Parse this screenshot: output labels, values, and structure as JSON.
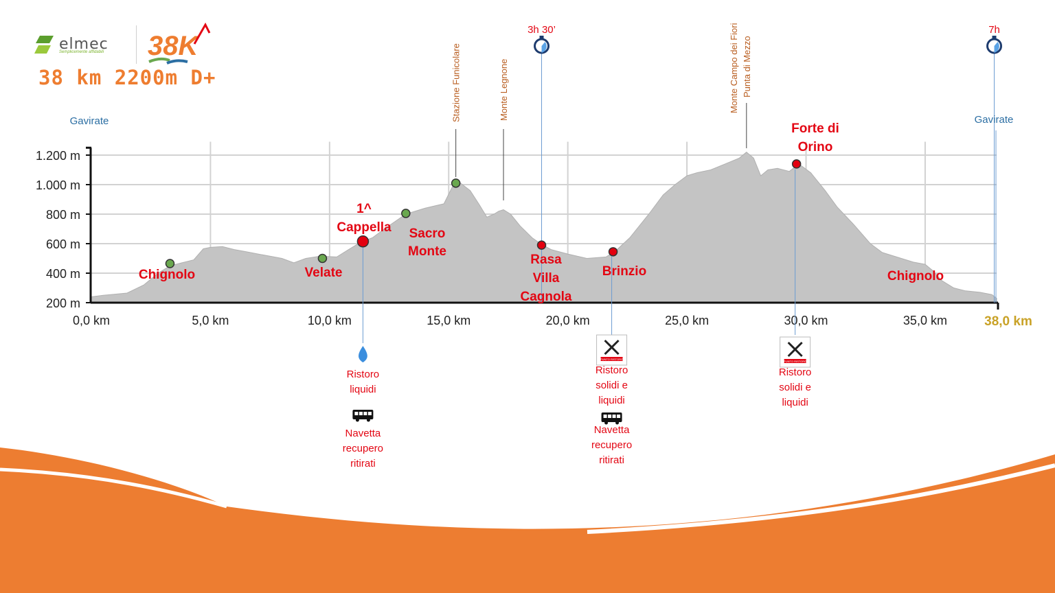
{
  "branding": {
    "sponsor_logo": "elmec",
    "sponsor_tagline": "Semplicemente affidabili",
    "event_logo": "38K",
    "headline": "38 km 2200m D+"
  },
  "colors": {
    "orange": "#ee7d30",
    "profile_fill": "#c4c4c4",
    "red": "#e30613",
    "blue": "#2b6ea3",
    "gold": "#c9a227",
    "green_marker": "#6aa84f",
    "red_marker": "#e3000f"
  },
  "chart_data": {
    "type": "area",
    "x_unit": "km",
    "y_unit": "m",
    "xlim": [
      0,
      38
    ],
    "ylim": [
      200,
      1300
    ],
    "x_ticks": [
      "0,0 km",
      "5,0 km",
      "10,0 km",
      "15,0 km",
      "20,0 km",
      "25,0 km",
      "30,0 km",
      "35,0 km"
    ],
    "x_tick_values": [
      0,
      5,
      10,
      15,
      20,
      25,
      30,
      35
    ],
    "x_end_label": "38,0 km",
    "y_ticks": [
      "200 m",
      "400 m",
      "600 m",
      "800 m",
      "1.000 m",
      "1.200 m"
    ],
    "y_tick_values": [
      200,
      400,
      600,
      800,
      1000,
      1200
    ],
    "grid": true,
    "profile": [
      [
        0,
        240
      ],
      [
        0.5,
        250
      ],
      [
        1.5,
        265
      ],
      [
        2.2,
        320
      ],
      [
        2.8,
        400
      ],
      [
        3.3,
        450
      ],
      [
        3.8,
        470
      ],
      [
        4.3,
        490
      ],
      [
        4.7,
        565
      ],
      [
        5.0,
        575
      ],
      [
        5.5,
        580
      ],
      [
        6.0,
        560
      ],
      [
        6.5,
        545
      ],
      [
        7.0,
        530
      ],
      [
        7.5,
        515
      ],
      [
        8.0,
        500
      ],
      [
        8.5,
        470
      ],
      [
        9.0,
        500
      ],
      [
        9.6,
        515
      ],
      [
        10.3,
        510
      ],
      [
        10.8,
        560
      ],
      [
        11.3,
        610
      ],
      [
        11.8,
        640
      ],
      [
        12.3,
        700
      ],
      [
        13.2,
        800
      ],
      [
        14.0,
        840
      ],
      [
        14.8,
        870
      ],
      [
        15.2,
        1000
      ],
      [
        15.5,
        1010
      ],
      [
        15.9,
        960
      ],
      [
        16.3,
        860
      ],
      [
        16.6,
        780
      ],
      [
        16.9,
        800
      ],
      [
        17.1,
        820
      ],
      [
        17.3,
        830
      ],
      [
        17.6,
        800
      ],
      [
        18.0,
        720
      ],
      [
        18.5,
        640
      ],
      [
        18.9,
        595
      ],
      [
        19.3,
        560
      ],
      [
        20.0,
        530
      ],
      [
        20.8,
        500
      ],
      [
        21.6,
        510
      ],
      [
        22.0,
        550
      ],
      [
        22.6,
        640
      ],
      [
        23.4,
        800
      ],
      [
        24.0,
        930
      ],
      [
        24.5,
        1000
      ],
      [
        25.0,
        1060
      ],
      [
        25.4,
        1080
      ],
      [
        26.0,
        1100
      ],
      [
        26.6,
        1140
      ],
      [
        27.2,
        1180
      ],
      [
        27.5,
        1220
      ],
      [
        27.8,
        1180
      ],
      [
        28.1,
        1060
      ],
      [
        28.4,
        1100
      ],
      [
        28.8,
        1110
      ],
      [
        29.3,
        1090
      ],
      [
        29.7,
        1140
      ],
      [
        30.2,
        1080
      ],
      [
        30.8,
        960
      ],
      [
        31.3,
        850
      ],
      [
        32.0,
        730
      ],
      [
        32.7,
        600
      ],
      [
        33.2,
        540
      ],
      [
        34.0,
        500
      ],
      [
        34.5,
        475
      ],
      [
        35.0,
        460
      ],
      [
        35.3,
        420
      ],
      [
        35.7,
        350
      ],
      [
        36.2,
        300
      ],
      [
        36.7,
        280
      ],
      [
        37.3,
        270
      ],
      [
        37.8,
        255
      ],
      [
        38.0,
        230
      ]
    ],
    "waypoints": [
      {
        "km": 3.3,
        "ele": 465,
        "marker": "green",
        "name": "Chignolo"
      },
      {
        "km": 9.7,
        "ele": 500,
        "marker": "green",
        "name": "Velate"
      },
      {
        "km": 11.4,
        "ele": 615,
        "marker": "red-large",
        "name_lines": [
          "1^",
          "Cappella"
        ]
      },
      {
        "km": 13.2,
        "ele": 805,
        "marker": "green",
        "name_lines": [
          "Sacro",
          "Monte"
        ]
      },
      {
        "km": 15.3,
        "ele": 1010,
        "marker": "green"
      },
      {
        "km": 18.9,
        "ele": 590,
        "marker": "red",
        "name_lines": [
          "Rasa",
          "Villa",
          "Cagnola"
        ]
      },
      {
        "km": 21.9,
        "ele": 545,
        "marker": "red",
        "name": "Brinzio"
      },
      {
        "km": 29.6,
        "ele": 1140,
        "marker": "red",
        "name_lines": [
          "Forte di",
          "Orino"
        ]
      },
      {
        "km": 34.2,
        "name": "Chignolo"
      }
    ],
    "summits": [
      {
        "km": 15.3,
        "label": "Stazione Funicolare"
      },
      {
        "km": 17.3,
        "label": "Monte Legnone"
      },
      {
        "km": 27.5,
        "label_lines": [
          "Monte Campo dei Fiori",
          "Punta di Mezzo"
        ]
      }
    ],
    "start_label": "Gavirate",
    "finish_label": "Gavirate",
    "time_checks": [
      {
        "km": 18.9,
        "label": "3h 30’",
        "icon": "stopwatch-icon"
      },
      {
        "km": 37.9,
        "label": "7h",
        "icon": "stopwatch-icon"
      }
    ],
    "aid_stations": [
      {
        "km": 11.4,
        "icon": "water-drop-icon",
        "lines": [
          "Ristoro",
          "liquidi"
        ],
        "shuttle": true
      },
      {
        "km": 21.9,
        "icon": "food-station-icon",
        "lines": [
          "Ristoro",
          "solidi e",
          "liquidi"
        ],
        "shuttle": true
      },
      {
        "km": 29.6,
        "icon": "food-station-icon",
        "lines": [
          "Ristoro",
          "solidi e",
          "liquidi"
        ],
        "shuttle": false
      }
    ],
    "shuttle_lines": [
      "Navetta",
      "recupero",
      "ritirati"
    ],
    "food_icon_caption": "PUNTO RISTORO"
  }
}
